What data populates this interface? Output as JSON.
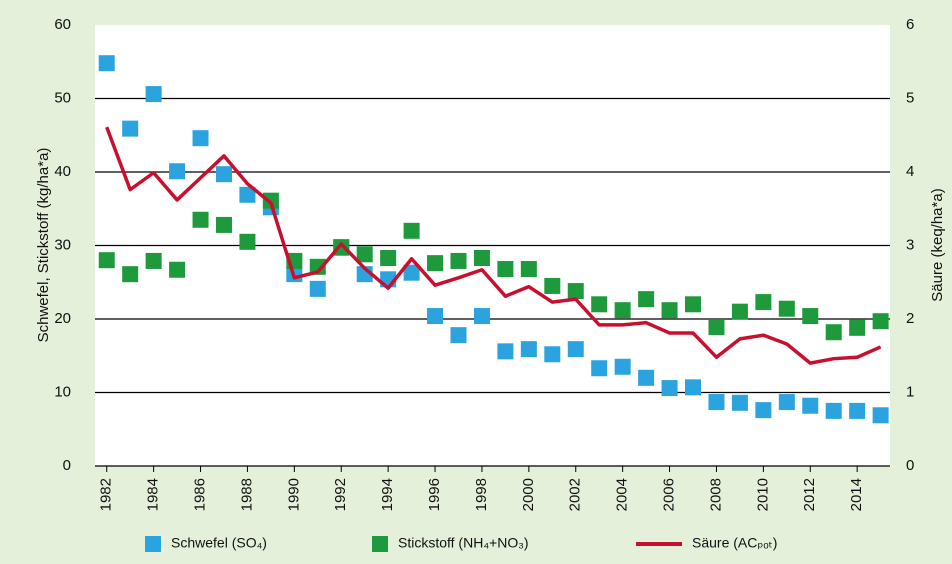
{
  "chart_data": {
    "type": "scatter-line",
    "ylabel": "Schwefel, Stickstoff (kg/ha*a)",
    "y2label": "Säure (keq/ha*a)",
    "x": [
      1982,
      1983,
      1984,
      1985,
      1986,
      1987,
      1988,
      1989,
      1990,
      1991,
      1992,
      1993,
      1994,
      1995,
      1996,
      1997,
      1998,
      1999,
      2000,
      2001,
      2002,
      2003,
      2004,
      2005,
      2006,
      2007,
      2008,
      2009,
      2010,
      2011,
      2012,
      2013,
      2014,
      2015
    ],
    "xlim": [
      1981.5,
      2015.4
    ],
    "xticks": [
      1982,
      1984,
      1986,
      1988,
      1990,
      1992,
      1994,
      1996,
      1998,
      2000,
      2002,
      2004,
      2006,
      2008,
      2010,
      2012,
      2014
    ],
    "ylim": [
      0,
      60
    ],
    "yticks": [
      0,
      10,
      20,
      30,
      40,
      50,
      60
    ],
    "y2lim": [
      0,
      6
    ],
    "y2ticks": [
      0,
      1,
      2,
      3,
      4,
      5,
      6
    ],
    "grid": true,
    "series": [
      {
        "name": "Schwefel (SO₄)",
        "color": "#2aa3de",
        "kind": "marker",
        "values": [
          54.8,
          45.9,
          50.6,
          40.1,
          44.6,
          39.7,
          36.9,
          35.2,
          26.1,
          24.1,
          29.8,
          26.1,
          25.4,
          26.3,
          20.4,
          17.8,
          20.4,
          15.6,
          15.9,
          15.2,
          15.9,
          13.3,
          13.5,
          12.0,
          10.6,
          10.7,
          8.7,
          8.6,
          7.6,
          8.7,
          8.2,
          7.5,
          7.5,
          6.9
        ]
      },
      {
        "name": "Stickstoff (NH₄+NO₃)",
        "color": "#1e9a3c",
        "kind": "marker",
        "values": [
          28.0,
          26.1,
          27.9,
          26.7,
          33.5,
          32.8,
          30.5,
          36.1,
          27.9,
          27.1,
          29.7,
          28.8,
          28.3,
          32.0,
          27.6,
          27.9,
          28.3,
          26.8,
          26.8,
          24.5,
          23.8,
          22.0,
          21.2,
          22.7,
          21.2,
          22.0,
          18.9,
          21.0,
          22.3,
          21.4,
          20.4,
          18.2,
          18.8,
          19.7
        ]
      },
      {
        "name": "Säure (ACₚₒₜ)",
        "color": "#c8102e",
        "kind": "line",
        "axis": "y2",
        "values": [
          4.61,
          3.76,
          3.99,
          3.62,
          3.92,
          4.22,
          3.84,
          3.58,
          2.56,
          2.64,
          3.02,
          2.69,
          2.42,
          2.82,
          2.46,
          2.56,
          2.67,
          2.31,
          2.44,
          2.23,
          2.27,
          1.92,
          1.92,
          1.95,
          1.81,
          1.81,
          1.48,
          1.73,
          1.78,
          1.66,
          1.4,
          1.46,
          1.48,
          1.62
        ]
      }
    ]
  }
}
